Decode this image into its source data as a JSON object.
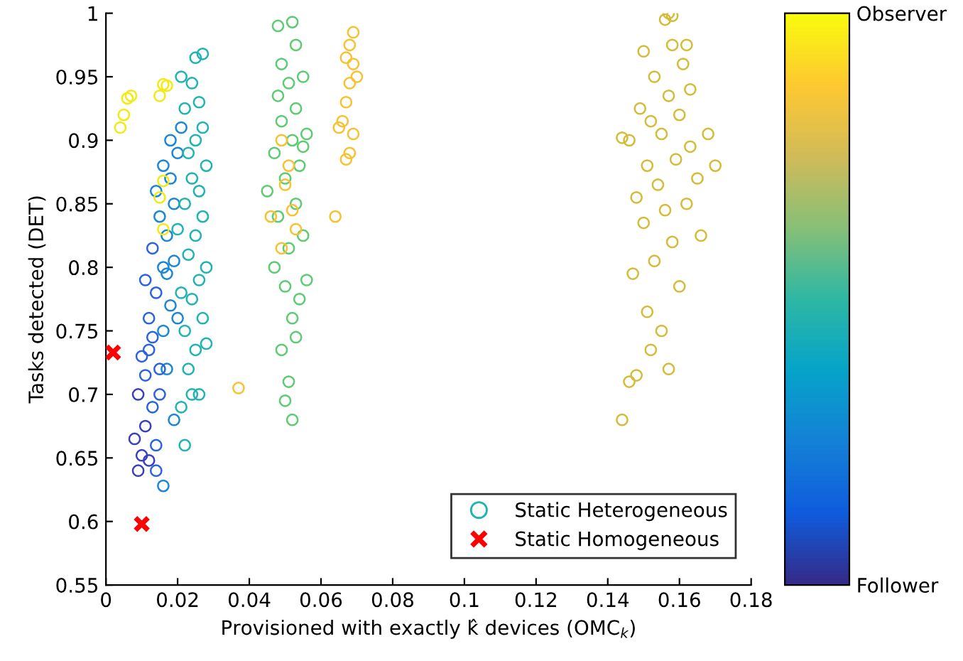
{
  "chart_data": {
    "type": "scatter",
    "xlabel": "Provisioned with exactly k̂ devices (OMC$_{k}$)",
    "ylabel": "Tasks detected (DET)",
    "xlim": [
      0,
      0.18
    ],
    "xticks": [
      0,
      0.02,
      0.04,
      0.06,
      0.08,
      0.1,
      0.12,
      0.14,
      0.16,
      0.18
    ],
    "ylim": [
      0.55,
      1
    ],
    "yticks": [
      0.55,
      0.6,
      0.65,
      0.7,
      0.75,
      0.8,
      0.85,
      0.9,
      0.95,
      1
    ],
    "clim": [
      0,
      1
    ],
    "cticks": [
      {
        "value": 0,
        "label": "Follower"
      },
      {
        "value": 1,
        "label": "Observer"
      }
    ],
    "legend": "bottom",
    "grid": false,
    "series": [
      {
        "name": "Static Heterogeneous",
        "color": "#1fb3b3",
        "marker": "circle",
        "x": [
          0.009,
          0.01,
          0.012,
          0.008,
          0.011,
          0.014,
          0.016,
          0.013,
          0.009,
          0.015,
          0.011,
          0.017,
          0.01,
          0.013,
          0.016,
          0.012,
          0.018,
          0.014,
          0.011,
          0.016,
          0.019,
          0.013,
          0.017,
          0.015,
          0.019,
          0.014,
          0.018,
          0.016,
          0.02,
          0.018,
          0.021,
          0.017,
          0.012,
          0.02,
          0.015,
          0.019,
          0.014,
          0.022,
          0.021,
          0.024,
          0.026,
          0.023,
          0.025,
          0.022,
          0.027,
          0.024,
          0.026,
          0.028,
          0.023,
          0.025,
          0.027,
          0.022,
          0.026,
          0.024,
          0.028,
          0.023,
          0.025,
          0.027,
          0.022,
          0.026,
          0.024,
          0.021,
          0.025,
          0.027,
          0.02,
          0.021,
          0.028,
          0.052,
          0.05,
          0.051,
          0.049,
          0.053,
          0.052,
          0.054,
          0.05,
          0.056,
          0.047,
          0.051,
          0.055,
          0.048,
          0.053,
          0.045,
          0.05,
          0.054,
          0.047,
          0.052,
          0.056,
          0.049,
          0.053,
          0.048,
          0.051,
          0.055,
          0.049,
          0.053,
          0.048,
          0.052,
          0.055,
          0.049,
          0.051,
          0.05,
          0.052,
          0.046,
          0.053,
          0.049,
          0.065,
          0.066,
          0.064,
          0.067,
          0.068,
          0.069,
          0.067,
          0.068,
          0.069,
          0.07,
          0.068,
          0.069,
          0.067,
          0.037,
          0.004,
          0.005,
          0.006,
          0.007,
          0.015,
          0.016,
          0.017,
          0.016,
          0.015,
          0.016,
          0.144,
          0.146,
          0.148,
          0.152,
          0.157,
          0.151,
          0.155,
          0.16,
          0.147,
          0.153,
          0.158,
          0.15,
          0.156,
          0.162,
          0.148,
          0.154,
          0.165,
          0.151,
          0.159,
          0.163,
          0.146,
          0.155,
          0.168,
          0.152,
          0.16,
          0.149,
          0.157,
          0.163,
          0.153,
          0.161,
          0.15,
          0.158,
          0.162,
          0.156,
          0.157,
          0.158,
          0.144,
          0.166,
          0.17
        ],
        "values": [
          0.64,
          0.652,
          0.648,
          0.665,
          0.675,
          0.66,
          0.628,
          0.69,
          0.7,
          0.7,
          0.715,
          0.72,
          0.73,
          0.745,
          0.75,
          0.76,
          0.77,
          0.78,
          0.79,
          0.8,
          0.805,
          0.815,
          0.825,
          0.84,
          0.85,
          0.86,
          0.87,
          0.88,
          0.89,
          0.9,
          0.91,
          0.795,
          0.735,
          0.76,
          0.72,
          0.68,
          0.64,
          0.66,
          0.69,
          0.7,
          0.7,
          0.72,
          0.735,
          0.75,
          0.76,
          0.775,
          0.79,
          0.8,
          0.81,
          0.825,
          0.84,
          0.85,
          0.86,
          0.87,
          0.88,
          0.89,
          0.9,
          0.91,
          0.925,
          0.93,
          0.945,
          0.95,
          0.965,
          0.968,
          0.83,
          0.78,
          0.74,
          0.68,
          0.695,
          0.71,
          0.735,
          0.745,
          0.76,
          0.775,
          0.785,
          0.79,
          0.8,
          0.815,
          0.825,
          0.84,
          0.85,
          0.86,
          0.87,
          0.88,
          0.89,
          0.9,
          0.905,
          0.915,
          0.925,
          0.935,
          0.945,
          0.95,
          0.96,
          0.975,
          0.99,
          0.993,
          0.895,
          0.9,
          0.88,
          0.865,
          0.845,
          0.84,
          0.83,
          0.815,
          0.91,
          0.915,
          0.84,
          0.885,
          0.89,
          0.905,
          0.93,
          0.945,
          0.96,
          0.95,
          0.975,
          0.985,
          0.965,
          0.705,
          0.91,
          0.92,
          0.933,
          0.935,
          0.935,
          0.944,
          0.943,
          0.868,
          0.855,
          0.83,
          0.68,
          0.71,
          0.715,
          0.735,
          0.72,
          0.765,
          0.75,
          0.785,
          0.795,
          0.805,
          0.82,
          0.835,
          0.845,
          0.85,
          0.855,
          0.865,
          0.87,
          0.88,
          0.885,
          0.895,
          0.9,
          0.905,
          0.905,
          0.915,
          0.92,
          0.925,
          0.935,
          0.94,
          0.95,
          0.96,
          0.97,
          0.975,
          0.975,
          0.995,
          1.0,
          0.998,
          0.902,
          0.825,
          0.88
        ],
        "colors": [
          "#3a3fc0",
          "#3a3fc0",
          "#3a3fc0",
          "#3a3fc0",
          "#3a3fc0",
          "#2a62e0",
          "#1a86d8",
          "#2a62e0",
          "#3a3fc0",
          "#2a62e0",
          "#2a62e0",
          "#1a86d8",
          "#2a62e0",
          "#2a62e0",
          "#1a86d8",
          "#2a62e0",
          "#1a86d8",
          "#2a62e0",
          "#2a62e0",
          "#1a86d8",
          "#1a86d8",
          "#2a62e0",
          "#1a86d8",
          "#1a86d8",
          "#1a86d8",
          "#1a86d8",
          "#1a86d8",
          "#1a86d8",
          "#1a86d8",
          "#1a86d8",
          "#1a86d8",
          "#1a86d8",
          "#2a62e0",
          "#1a86d8",
          "#2a62e0",
          "#1a86d8",
          "#2a62e0",
          "#1fb3b3",
          "#1fb3b3",
          "#1fb3b3",
          "#1fb3b3",
          "#1fb3b3",
          "#1fb3b3",
          "#1fb3b3",
          "#1fb3b3",
          "#1fb3b3",
          "#1fb3b3",
          "#1fb3b3",
          "#1fb3b3",
          "#1fb3b3",
          "#1fb3b3",
          "#1fb3b3",
          "#1fb3b3",
          "#1fb3b3",
          "#1fb3b3",
          "#1fb3b3",
          "#1fb3b3",
          "#1fb3b3",
          "#1fb3b3",
          "#1fb3b3",
          "#1fb3b3",
          "#1fb3b3",
          "#1fb3b3",
          "#1fb3b3",
          "#1fb3b3",
          "#1fb3b3",
          "#1fb3b3",
          "#5ccb72",
          "#5ccb72",
          "#5ccb72",
          "#5ccb72",
          "#5ccb72",
          "#5ccb72",
          "#5ccb72",
          "#5ccb72",
          "#5ccb72",
          "#5ccb72",
          "#5ccb72",
          "#5ccb72",
          "#5ccb72",
          "#5ccb72",
          "#5ccb72",
          "#5ccb72",
          "#5ccb72",
          "#5ccb72",
          "#5ccb72",
          "#5ccb72",
          "#5ccb72",
          "#5ccb72",
          "#5ccb72",
          "#5ccb72",
          "#5ccb72",
          "#5ccb72",
          "#5ccb72",
          "#5ccb72",
          "#5ccb72",
          "#5ccb72",
          "#f8c132",
          "#f8c132",
          "#f8c132",
          "#f8c132",
          "#f8c132",
          "#f8c132",
          "#f8c132",
          "#f8c132",
          "#f8c132",
          "#f8c132",
          "#f8c132",
          "#f8c132",
          "#f8c132",
          "#f8c132",
          "#f8c132",
          "#f8c132",
          "#f8c132",
          "#f8c132",
          "#f8c132",
          "#f8c132",
          "#f8c132",
          "#f2ea10",
          "#f2ea10",
          "#f2ea10",
          "#f2ea10",
          "#f2ea10",
          "#f2ea10",
          "#f2ea10",
          "#f2ea10",
          "#f2ea10",
          "#f2ea10",
          "#d4bb38",
          "#d4bb38",
          "#d4bb38",
          "#d4bb38",
          "#d4bb38",
          "#d4bb38",
          "#d4bb38",
          "#d4bb38",
          "#d4bb38",
          "#d4bb38",
          "#d4bb38",
          "#d4bb38",
          "#d4bb38",
          "#d4bb38",
          "#d4bb38",
          "#d4bb38",
          "#d4bb38",
          "#d4bb38",
          "#d4bb38",
          "#d4bb38",
          "#d4bb38",
          "#d4bb38",
          "#d4bb38",
          "#d4bb38",
          "#d4bb38",
          "#d4bb38",
          "#d4bb38",
          "#d4bb38",
          "#d4bb38",
          "#d4bb38",
          "#d4bb38",
          "#d4bb38",
          "#d4bb38",
          "#d4bb38",
          "#d4bb38",
          "#d4bb38",
          "#d4bb38",
          "#d4bb38",
          "#d4bb38"
        ]
      },
      {
        "name": "Static Homogeneous",
        "color": "#ff0000",
        "marker": "cross",
        "x": [
          0.002,
          0.01
        ],
        "values": [
          0.733,
          0.598
        ]
      }
    ]
  }
}
